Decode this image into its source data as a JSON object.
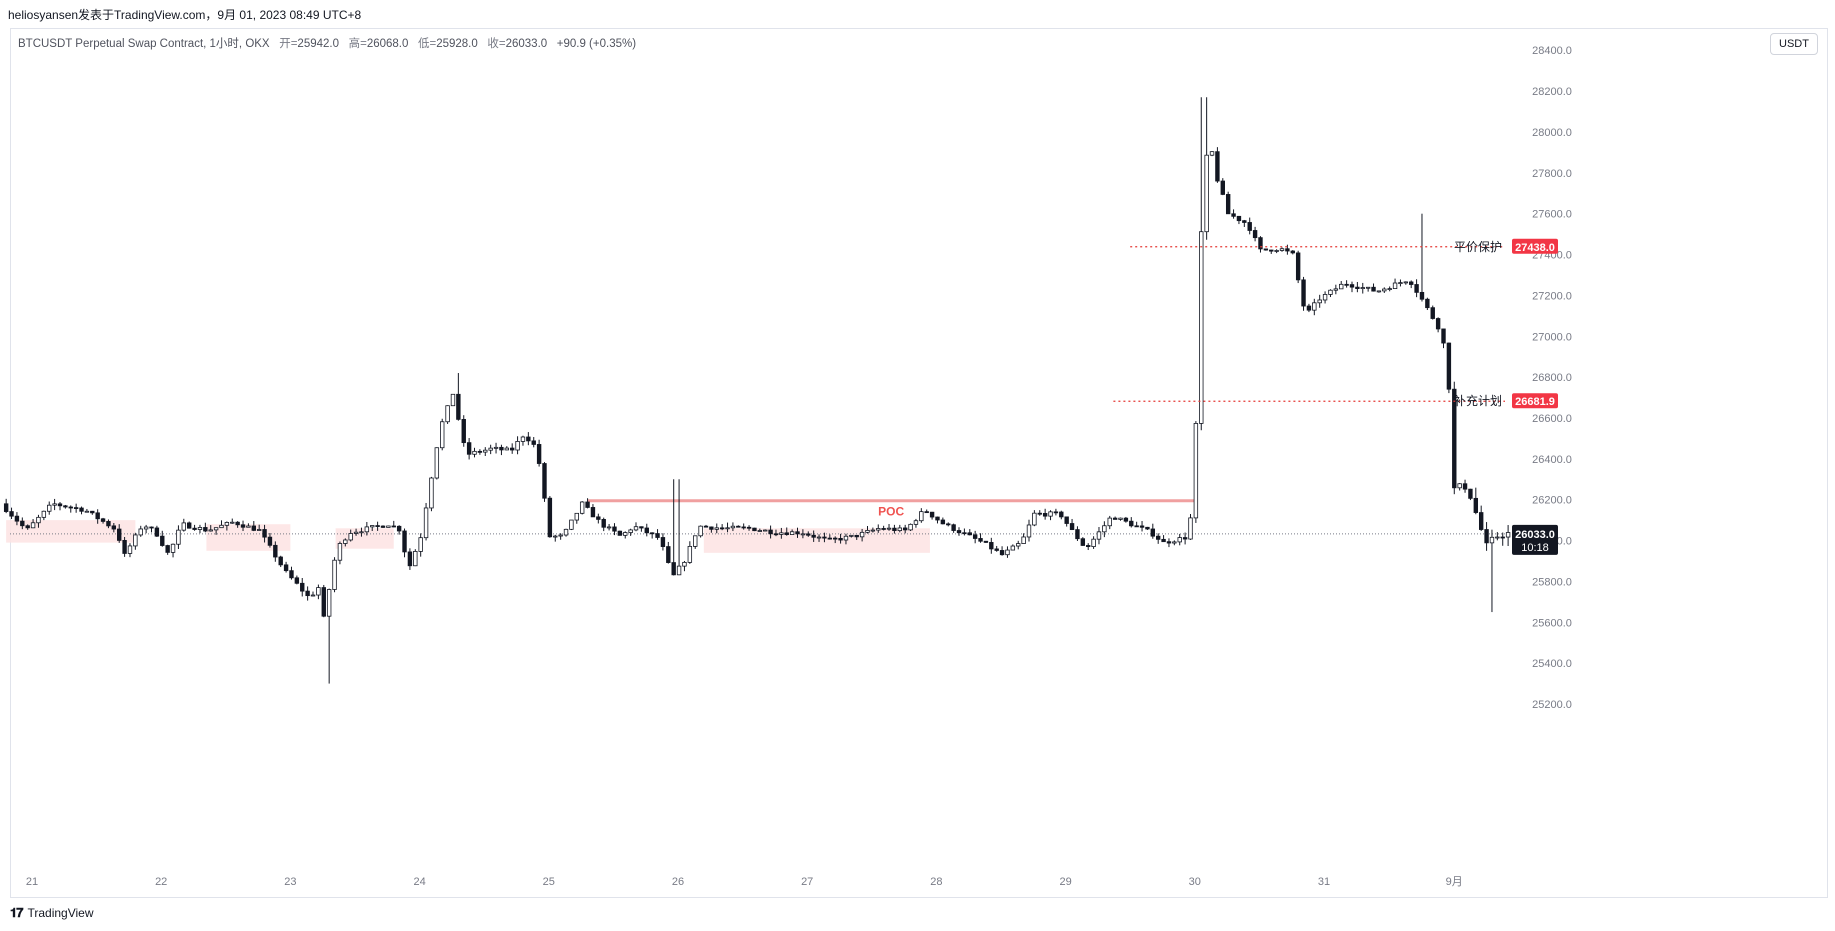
{
  "header": {
    "publisher_line": "heliosyansen发表于TradingView.com，9月 01, 2023 08:49 UTC+8"
  },
  "legend": {
    "symbol": "BTCUSDT Perpetual Swap Contract, 1小时, OKX",
    "open_label": "开=",
    "open": "25942.0",
    "high_label": "高=",
    "high": "26068.0",
    "low_label": "低=",
    "low": "25928.0",
    "close_label": "收=",
    "close": "26033.0",
    "change": "+90.9 (+0.35%)"
  },
  "currency_button": "USDT",
  "footer": {
    "brand": "TradingView"
  },
  "colors": {
    "poc_line": "#f0a0a0",
    "poc_label": "#ef5350",
    "dotted_level": "#e53935",
    "price_tag_bg": "#f23645",
    "current_price_bg": "#131722",
    "value_area": "#fde3e3",
    "candle": "#131722"
  },
  "chart_data": {
    "type": "candlestick",
    "ylim": [
      25000,
      28500
    ],
    "y_ticks": [
      "25200.0",
      "25400.0",
      "25600.0",
      "25800.0",
      "26000.0",
      "26200.0",
      "26400.0",
      "26600.0",
      "26800.0",
      "27000.0",
      "27200.0",
      "27400.0",
      "27600.0",
      "27800.0",
      "28000.0",
      "28200.0",
      "28400.0"
    ],
    "x_ticks": [
      "21",
      "22",
      "23",
      "24",
      "25",
      "26",
      "27",
      "28",
      "29",
      "30",
      "31",
      "9月"
    ],
    "current_price": "26033.0",
    "countdown": "10:18",
    "levels": [
      {
        "name": "平价保护",
        "price": 27438.0,
        "price_label": "27438.0"
      },
      {
        "name": "补充计划",
        "price": 26681.9,
        "price_label": "26681.9"
      }
    ],
    "poc": {
      "label": "POC",
      "price": 26195,
      "from_day": 4.3,
      "to_day": 9.0
    },
    "value_areas": [
      {
        "from_day": -0.2,
        "to_day": 0.8,
        "low": 25990,
        "high": 26100
      },
      {
        "from_day": 1.35,
        "to_day": 2.0,
        "low": 25950,
        "high": 26080
      },
      {
        "from_day": 2.35,
        "to_day": 2.8,
        "low": 25960,
        "high": 26060
      },
      {
        "from_day": 5.2,
        "to_day": 6.95,
        "low": 25940,
        "high": 26060
      }
    ],
    "anchors": [
      [
        -0.2,
        26180
      ],
      [
        0.0,
        26050
      ],
      [
        0.2,
        26180
      ],
      [
        0.45,
        26150
      ],
      [
        0.7,
        26050
      ],
      [
        0.75,
        25920
      ],
      [
        0.9,
        26080
      ],
      [
        1.0,
        26040
      ],
      [
        1.1,
        25930
      ],
      [
        1.2,
        26080
      ],
      [
        1.4,
        26050
      ],
      [
        1.6,
        26090
      ],
      [
        1.8,
        26050
      ],
      [
        2.0,
        25850
      ],
      [
        2.2,
        25710
      ],
      [
        2.25,
        25800
      ],
      [
        2.3,
        25620
      ],
      [
        2.4,
        25960
      ],
      [
        2.5,
        26040
      ],
      [
        2.8,
        26080
      ],
      [
        2.9,
        26050
      ],
      [
        2.95,
        25850
      ],
      [
        3.05,
        26020
      ],
      [
        3.2,
        26550
      ],
      [
        3.3,
        26720
      ],
      [
        3.4,
        26420
      ],
      [
        3.6,
        26450
      ],
      [
        3.75,
        26440
      ],
      [
        3.85,
        26520
      ],
      [
        3.95,
        26450
      ],
      [
        4.05,
        26020
      ],
      [
        4.15,
        26020
      ],
      [
        4.3,
        26180
      ],
      [
        4.45,
        26080
      ],
      [
        4.6,
        26020
      ],
      [
        4.7,
        26070
      ],
      [
        4.9,
        26010
      ],
      [
        5.0,
        25820
      ],
      [
        5.1,
        25910
      ],
      [
        5.2,
        26070
      ],
      [
        5.4,
        26060
      ],
      [
        5.6,
        26060
      ],
      [
        5.8,
        26040
      ],
      [
        6.0,
        26040
      ],
      [
        6.2,
        26000
      ],
      [
        6.4,
        26020
      ],
      [
        6.6,
        26060
      ],
      [
        6.8,
        26050
      ],
      [
        6.95,
        26150
      ],
      [
        7.1,
        26080
      ],
      [
        7.3,
        26020
      ],
      [
        7.4,
        25990
      ],
      [
        7.55,
        25930
      ],
      [
        7.7,
        25990
      ],
      [
        7.8,
        26130
      ],
      [
        8.0,
        26130
      ],
      [
        8.1,
        26040
      ],
      [
        8.2,
        25960
      ],
      [
        8.4,
        26120
      ],
      [
        8.55,
        26080
      ],
      [
        8.7,
        26040
      ],
      [
        8.8,
        25990
      ],
      [
        9.0,
        26020
      ],
      [
        9.05,
        26550
      ],
      [
        9.08,
        27400
      ],
      [
        9.15,
        28000
      ],
      [
        9.2,
        27800
      ],
      [
        9.3,
        27600
      ],
      [
        9.45,
        27550
      ],
      [
        9.55,
        27420
      ],
      [
        9.7,
        27430
      ],
      [
        9.8,
        27400
      ],
      [
        9.9,
        27100
      ],
      [
        10.0,
        27180
      ],
      [
        10.2,
        27260
      ],
      [
        10.45,
        27220
      ],
      [
        10.7,
        27280
      ],
      [
        10.8,
        27180
      ],
      [
        10.95,
        27020
      ],
      [
        11.0,
        26850
      ],
      [
        11.05,
        26250
      ],
      [
        11.15,
        26270
      ],
      [
        11.3,
        25970
      ],
      [
        11.4,
        26033
      ]
    ],
    "candle_range_days": [
      -0.2,
      11.45
    ]
  }
}
